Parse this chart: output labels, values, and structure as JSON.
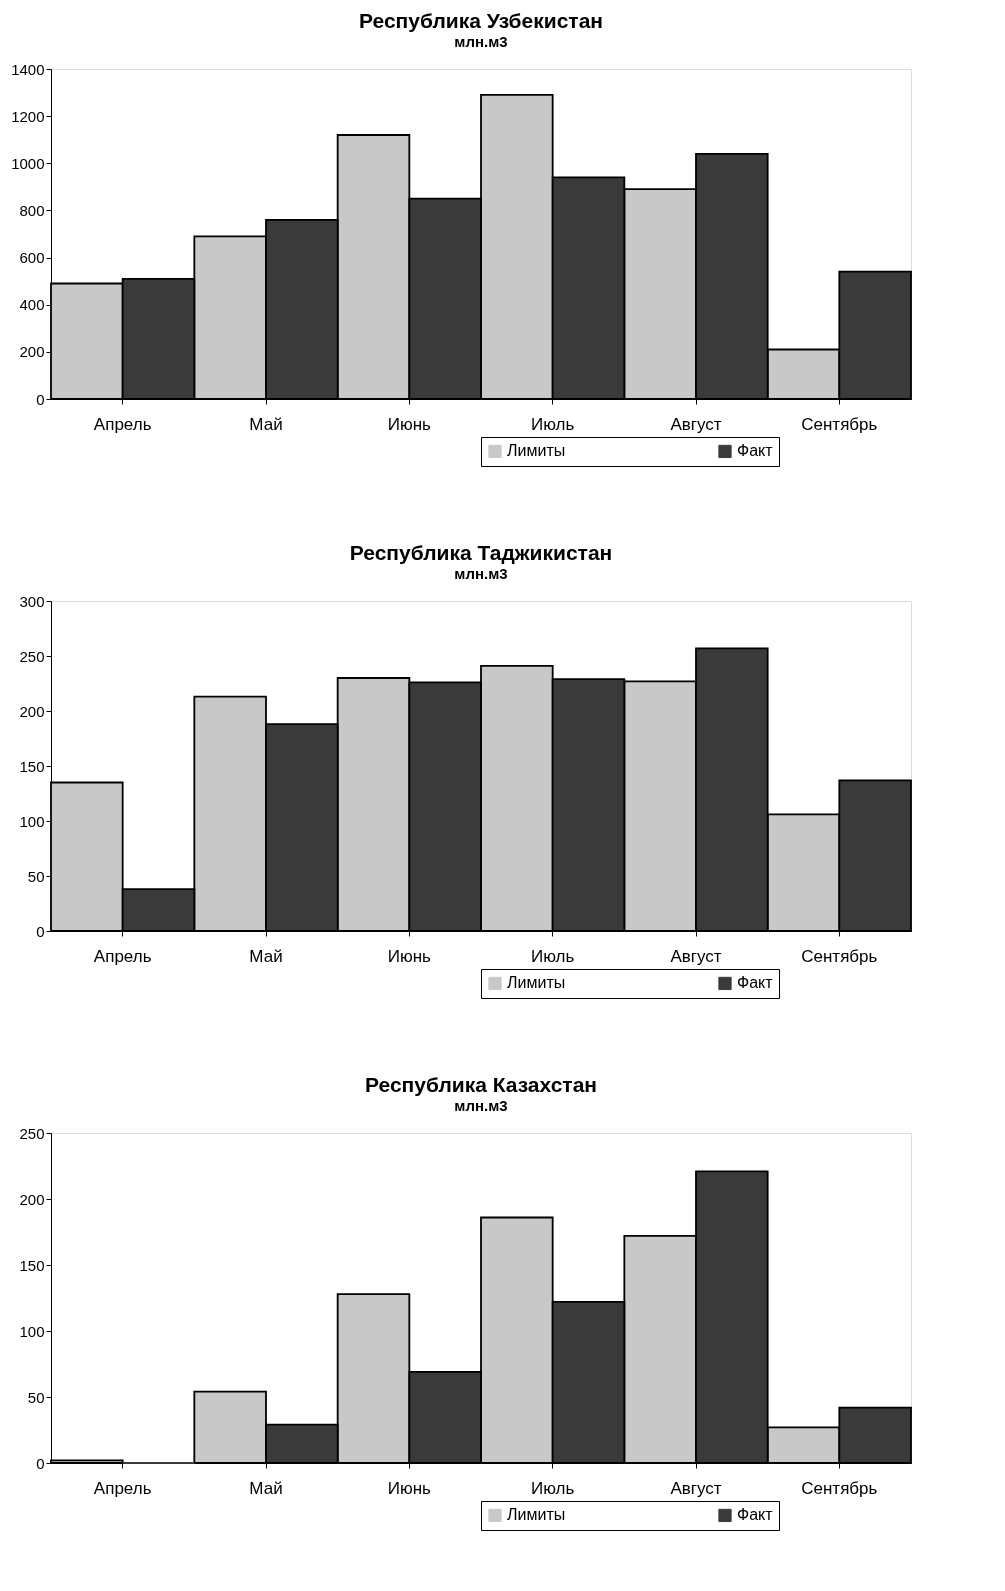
{
  "chart_data": [
    {
      "type": "bar",
      "title": "Республика Узбекистан",
      "ylabel": "млн.м3",
      "categories": [
        "Апрель",
        "Май",
        "Июнь",
        "Июль",
        "Август",
        "Сентябрь"
      ],
      "series": [
        {
          "name": "Лимиты",
          "color": "#c8c8c8",
          "values": [
            490,
            690,
            1120,
            1290,
            890,
            210
          ]
        },
        {
          "name": "Факт",
          "color": "#3a3a3a",
          "values": [
            510,
            760,
            850,
            940,
            1040,
            540
          ]
        }
      ],
      "ylim": [
        0,
        1400
      ],
      "yticks": [
        0,
        200,
        400,
        600,
        800,
        1000,
        1200,
        1400
      ],
      "grid": false,
      "legend": "bottom right"
    },
    {
      "type": "bar",
      "title": "Республика Таджикистан",
      "ylabel": "млн.м3",
      "categories": [
        "Апрель",
        "Май",
        "Июнь",
        "Июль",
        "Август",
        "Сентябрь"
      ],
      "series": [
        {
          "name": "Лимиты",
          "color": "#c8c8c8",
          "values": [
            135,
            213,
            230,
            241,
            227,
            106
          ]
        },
        {
          "name": "Факт",
          "color": "#3a3a3a",
          "values": [
            38,
            188,
            226,
            229,
            257,
            137
          ]
        }
      ],
      "ylim": [
        0,
        300
      ],
      "yticks": [
        0,
        50,
        100,
        150,
        200,
        250,
        300
      ],
      "grid": false,
      "legend": "bottom right"
    },
    {
      "type": "bar",
      "title": "Республика Казахстан",
      "ylabel": "млн.м3",
      "categories": [
        "Апрель",
        "Май",
        "Июнь",
        "Июль",
        "Август",
        "Сентябрь"
      ],
      "series": [
        {
          "name": "Лимиты",
          "color": "#c8c8c8",
          "values": [
            2,
            54,
            128,
            186,
            172,
            27
          ]
        },
        {
          "name": "Факт",
          "color": "#3a3a3a",
          "values": [
            0,
            29,
            69,
            122,
            221,
            42
          ]
        }
      ],
      "ylim": [
        0,
        250
      ],
      "yticks": [
        0,
        50,
        100,
        150,
        200,
        250
      ],
      "grid": false,
      "legend": "bottom right"
    }
  ]
}
